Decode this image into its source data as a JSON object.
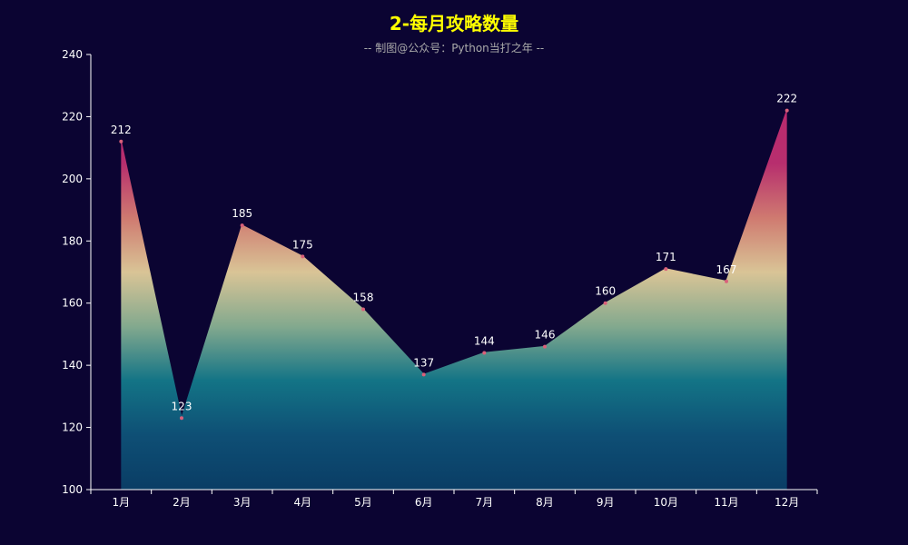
{
  "chart_data": {
    "type": "area",
    "title": "2-每月攻略数量",
    "subtitle": "-- 制图@公众号：Python当打之年 --",
    "categories": [
      "1月",
      "2月",
      "3月",
      "4月",
      "5月",
      "6月",
      "7月",
      "8月",
      "9月",
      "10月",
      "11月",
      "12月"
    ],
    "values": [
      212,
      123,
      185,
      175,
      158,
      137,
      144,
      146,
      160,
      171,
      167,
      222
    ],
    "ylim": [
      100,
      240
    ],
    "yticks": [
      100,
      120,
      140,
      160,
      180,
      200,
      220,
      240
    ],
    "grid": false,
    "legend": "none"
  },
  "colors": {
    "background": "#0b0432",
    "title": "#ffff00",
    "subtitle": "#aaaaaa",
    "axis": "#ffffff",
    "label": "#ffffff",
    "gradient": [
      "#ba2a6e",
      "#b72e6e",
      "#cf7a70",
      "#d9c496",
      "#83a98e",
      "#137486",
      "#0e4f75",
      "#0a3d65"
    ]
  }
}
